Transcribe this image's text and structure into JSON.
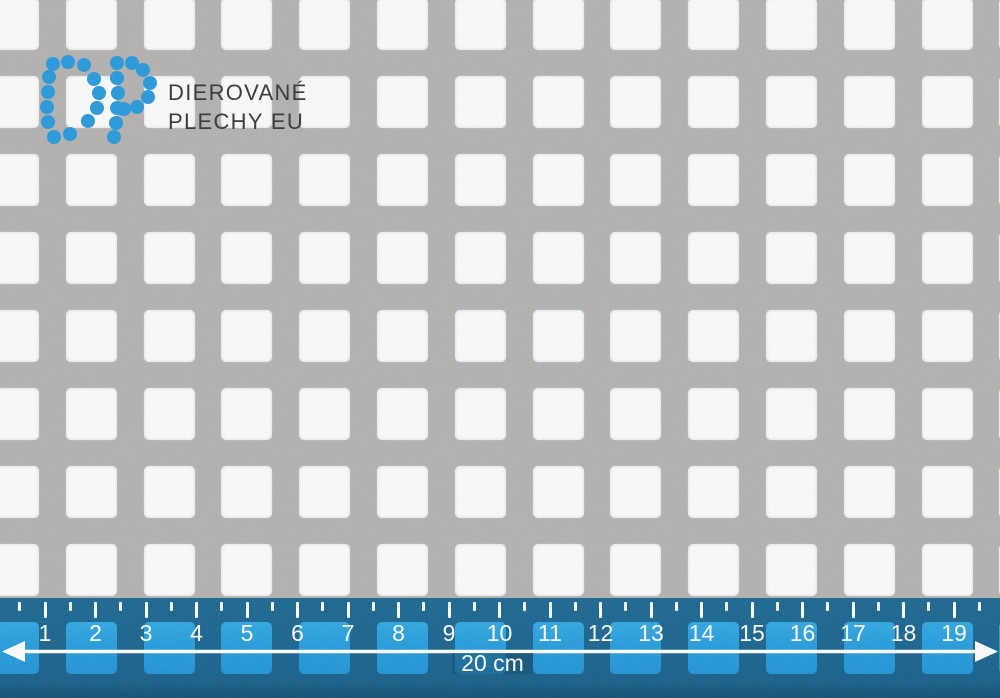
{
  "brand": {
    "line1": "DIEROVANÉ",
    "line2": "PLECHY EU",
    "logo_letters": "DP"
  },
  "ruler": {
    "numbers": [
      "1",
      "2",
      "3",
      "4",
      "5",
      "6",
      "7",
      "8",
      "9",
      "10",
      "11",
      "12",
      "13",
      "14",
      "15",
      "16",
      "17",
      "18",
      "19"
    ],
    "length_label": "20 cm"
  },
  "colors": {
    "logo_dot_blue": "#2498dc",
    "brand_text": "#333333",
    "sheet_metal_gray": "#b2b1af",
    "sheet_hole_white": "#fcfcfc",
    "ruler_dark_blue": "#15618c",
    "ruler_square_blue": "#229bdc",
    "ruler_marks_white": "#ffffff"
  }
}
